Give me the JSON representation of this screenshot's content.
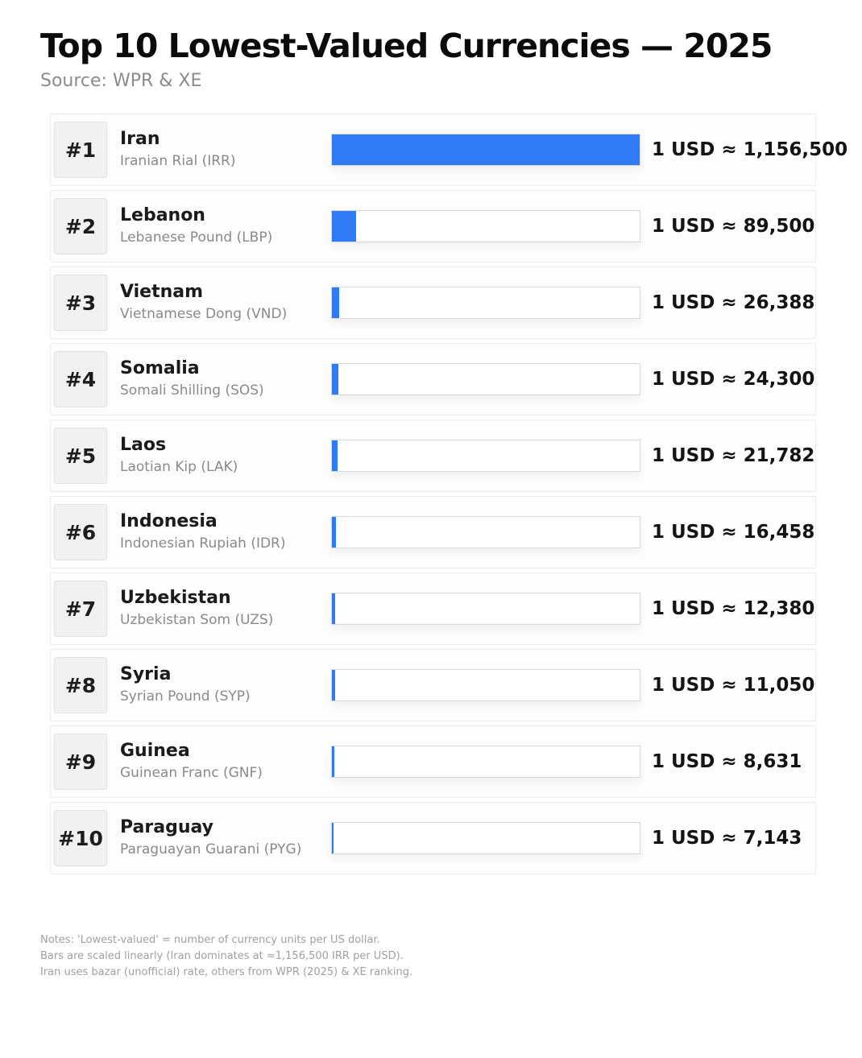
{
  "header": {
    "title": "Top 10 Lowest-Valued Currencies — 2025",
    "source": "Source: WPR & XE"
  },
  "colors": {
    "bar_fill": "#2f7bf6",
    "bar_track_border": "#d8d8d8",
    "rank_badge_bg": "#f1f1f1"
  },
  "chart_data": {
    "type": "bar",
    "title": "Top 10 Lowest-Valued Currencies — 2025",
    "source": "Source: WPR & XE",
    "unit": "currency units per 1 USD",
    "orientation": "horizontal",
    "scale": "linear",
    "max_value": 1156500,
    "entries": [
      {
        "rank": "#1",
        "country": "Iran",
        "currency": "Iranian Rial (IRR)",
        "value": 1156500,
        "rate_label": "1 USD ≈ 1,156,500"
      },
      {
        "rank": "#2",
        "country": "Lebanon",
        "currency": "Lebanese Pound (LBP)",
        "value": 89500,
        "rate_label": "1 USD ≈ 89,500"
      },
      {
        "rank": "#3",
        "country": "Vietnam",
        "currency": "Vietnamese Dong (VND)",
        "value": 26388,
        "rate_label": "1 USD ≈ 26,388"
      },
      {
        "rank": "#4",
        "country": "Somalia",
        "currency": "Somali Shilling (SOS)",
        "value": 24300,
        "rate_label": "1 USD ≈ 24,300"
      },
      {
        "rank": "#5",
        "country": "Laos",
        "currency": "Laotian Kip (LAK)",
        "value": 21782,
        "rate_label": "1 USD ≈ 21,782"
      },
      {
        "rank": "#6",
        "country": "Indonesia",
        "currency": "Indonesian Rupiah (IDR)",
        "value": 16458,
        "rate_label": "1 USD ≈ 16,458"
      },
      {
        "rank": "#7",
        "country": "Uzbekistan",
        "currency": "Uzbekistan Som (UZS)",
        "value": 12380,
        "rate_label": "1 USD ≈ 12,380"
      },
      {
        "rank": "#8",
        "country": "Syria",
        "currency": "Syrian Pound (SYP)",
        "value": 11050,
        "rate_label": "1 USD ≈ 11,050"
      },
      {
        "rank": "#9",
        "country": "Guinea",
        "currency": "Guinean Franc (GNF)",
        "value": 8631,
        "rate_label": "1 USD ≈ 8,631"
      },
      {
        "rank": "#10",
        "country": "Paraguay",
        "currency": "Paraguayan Guarani (PYG)",
        "value": 7143,
        "rate_label": "1 USD ≈ 7,143"
      }
    ]
  },
  "notes": [
    "Notes: 'Lowest-valued' = number of currency units per US dollar.",
    "Bars are scaled linearly (Iran dominates at ≈1,156,500 IRR per USD).",
    "Iran uses bazar (unofficial) rate, others from WPR (2025) & XE ranking."
  ]
}
